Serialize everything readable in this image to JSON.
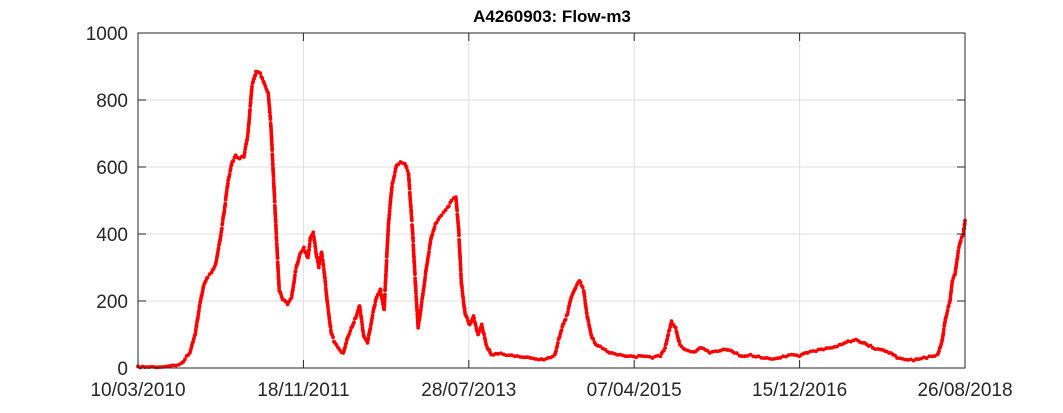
{
  "chart_data": {
    "type": "scatter",
    "title": "A4260903: Flow-m3",
    "xlabel": "",
    "ylabel": "",
    "x_ticks": [
      "10/03/2010",
      "18/11/2011",
      "28/07/2013",
      "07/04/2015",
      "15/12/2016",
      "26/08/2018"
    ],
    "xlim": [
      "2010-03-10",
      "2018-08-26"
    ],
    "y_ticks": [
      "0",
      "200",
      "400",
      "600",
      "800",
      "1000"
    ],
    "ylim": [
      0,
      1000
    ],
    "grid": true,
    "marker": "dot",
    "color": "#ff0000",
    "series": [
      {
        "name": "",
        "points": [
          [
            "2010-03-10",
            5
          ],
          [
            "2010-05-01",
            4
          ],
          [
            "2010-06-10",
            3
          ],
          [
            "2010-07-20",
            8
          ],
          [
            "2010-08-20",
            15
          ],
          [
            "2010-09-20",
            45
          ],
          [
            "2010-10-10",
            100
          ],
          [
            "2010-10-25",
            180
          ],
          [
            "2010-11-10",
            245
          ],
          [
            "2010-11-25",
            270
          ],
          [
            "2010-12-10",
            285
          ],
          [
            "2010-12-25",
            310
          ],
          [
            "2011-01-10",
            380
          ],
          [
            "2011-01-25",
            460
          ],
          [
            "2011-02-10",
            560
          ],
          [
            "2011-02-25",
            615
          ],
          [
            "2011-03-10",
            635
          ],
          [
            "2011-03-25",
            625
          ],
          [
            "2011-04-10",
            630
          ],
          [
            "2011-04-25",
            700
          ],
          [
            "2011-05-10",
            840
          ],
          [
            "2011-05-25",
            885
          ],
          [
            "2011-06-10",
            880
          ],
          [
            "2011-06-25",
            850
          ],
          [
            "2011-07-10",
            820
          ],
          [
            "2011-07-20",
            720
          ],
          [
            "2011-07-30",
            560
          ],
          [
            "2011-08-10",
            380
          ],
          [
            "2011-08-20",
            230
          ],
          [
            "2011-09-01",
            205
          ],
          [
            "2011-09-20",
            190
          ],
          [
            "2011-10-05",
            210
          ],
          [
            "2011-10-20",
            290
          ],
          [
            "2011-11-05",
            340
          ],
          [
            "2011-11-20",
            360
          ],
          [
            "2011-12-05",
            330
          ],
          [
            "2011-12-15",
            390
          ],
          [
            "2011-12-25",
            405
          ],
          [
            "2012-01-05",
            340
          ],
          [
            "2012-01-15",
            300
          ],
          [
            "2012-01-25",
            345
          ],
          [
            "2012-02-05",
            280
          ],
          [
            "2012-02-15",
            200
          ],
          [
            "2012-03-01",
            105
          ],
          [
            "2012-03-15",
            75
          ],
          [
            "2012-04-01",
            55
          ],
          [
            "2012-04-15",
            45
          ],
          [
            "2012-05-01",
            90
          ],
          [
            "2012-05-15",
            120
          ],
          [
            "2012-06-01",
            150
          ],
          [
            "2012-06-15",
            185
          ],
          [
            "2012-07-01",
            95
          ],
          [
            "2012-07-15",
            75
          ],
          [
            "2012-08-01",
            150
          ],
          [
            "2012-08-15",
            205
          ],
          [
            "2012-09-01",
            235
          ],
          [
            "2012-09-15",
            175
          ],
          [
            "2012-10-01",
            430
          ],
          [
            "2012-10-15",
            550
          ],
          [
            "2012-11-01",
            605
          ],
          [
            "2012-11-15",
            615
          ],
          [
            "2012-12-01",
            610
          ],
          [
            "2012-12-15",
            580
          ],
          [
            "2012-12-30",
            410
          ],
          [
            "2013-01-10",
            250
          ],
          [
            "2013-01-20",
            120
          ],
          [
            "2013-02-05",
            210
          ],
          [
            "2013-02-20",
            300
          ],
          [
            "2013-03-10",
            390
          ],
          [
            "2013-03-25",
            430
          ],
          [
            "2013-04-10",
            450
          ],
          [
            "2013-04-25",
            465
          ],
          [
            "2013-05-10",
            480
          ],
          [
            "2013-05-25",
            500
          ],
          [
            "2013-06-10",
            510
          ],
          [
            "2013-06-20",
            420
          ],
          [
            "2013-07-01",
            250
          ],
          [
            "2013-07-15",
            160
          ],
          [
            "2013-08-01",
            130
          ],
          [
            "2013-08-15",
            155
          ],
          [
            "2013-09-01",
            100
          ],
          [
            "2013-09-15",
            130
          ],
          [
            "2013-10-01",
            70
          ],
          [
            "2013-10-20",
            40
          ],
          [
            "2013-11-15",
            42
          ],
          [
            "2013-12-15",
            38
          ],
          [
            "2014-01-15",
            35
          ],
          [
            "2014-02-15",
            32
          ],
          [
            "2014-03-15",
            30
          ],
          [
            "2014-04-15",
            25
          ],
          [
            "2014-05-15",
            28
          ],
          [
            "2014-06-15",
            40
          ],
          [
            "2014-07-01",
            90
          ],
          [
            "2014-07-15",
            130
          ],
          [
            "2014-08-01",
            160
          ],
          [
            "2014-08-15",
            210
          ],
          [
            "2014-09-01",
            240
          ],
          [
            "2014-09-15",
            260
          ],
          [
            "2014-10-01",
            230
          ],
          [
            "2014-10-15",
            150
          ],
          [
            "2014-11-01",
            90
          ],
          [
            "2014-11-15",
            70
          ],
          [
            "2014-12-01",
            65
          ],
          [
            "2014-12-20",
            55
          ],
          [
            "2015-01-15",
            45
          ],
          [
            "2015-02-15",
            40
          ],
          [
            "2015-03-15",
            35
          ],
          [
            "2015-04-15",
            32
          ],
          [
            "2015-05-15",
            35
          ],
          [
            "2015-06-15",
            30
          ],
          [
            "2015-07-15",
            35
          ],
          [
            "2015-08-01",
            60
          ],
          [
            "2015-08-15",
            110
          ],
          [
            "2015-08-25",
            140
          ],
          [
            "2015-09-10",
            120
          ],
          [
            "2015-09-25",
            70
          ],
          [
            "2015-10-15",
            55
          ],
          [
            "2015-11-15",
            48
          ],
          [
            "2015-12-15",
            60
          ],
          [
            "2016-01-15",
            45
          ],
          [
            "2016-02-15",
            50
          ],
          [
            "2016-03-15",
            55
          ],
          [
            "2016-04-15",
            45
          ],
          [
            "2016-05-15",
            35
          ],
          [
            "2016-06-15",
            40
          ],
          [
            "2016-07-15",
            35
          ],
          [
            "2016-08-15",
            30
          ],
          [
            "2016-09-15",
            28
          ],
          [
            "2016-10-15",
            35
          ],
          [
            "2016-11-15",
            40
          ],
          [
            "2016-12-15",
            35
          ],
          [
            "2017-01-15",
            45
          ],
          [
            "2017-02-15",
            50
          ],
          [
            "2017-03-15",
            55
          ],
          [
            "2017-04-15",
            60
          ],
          [
            "2017-05-15",
            70
          ],
          [
            "2017-06-15",
            80
          ],
          [
            "2017-07-15",
            85
          ],
          [
            "2017-08-15",
            75
          ],
          [
            "2017-09-15",
            60
          ],
          [
            "2017-10-15",
            55
          ],
          [
            "2017-11-15",
            45
          ],
          [
            "2017-12-15",
            30
          ],
          [
            "2018-01-15",
            25
          ],
          [
            "2018-02-15",
            22
          ],
          [
            "2018-03-15",
            28
          ],
          [
            "2018-04-15",
            35
          ],
          [
            "2018-05-15",
            40
          ],
          [
            "2018-06-01",
            80
          ],
          [
            "2018-06-15",
            150
          ],
          [
            "2018-07-01",
            200
          ],
          [
            "2018-07-10",
            260
          ],
          [
            "2018-07-20",
            280
          ],
          [
            "2018-08-01",
            350
          ],
          [
            "2018-08-10",
            380
          ],
          [
            "2018-08-20",
            400
          ],
          [
            "2018-08-26",
            440
          ]
        ]
      }
    ]
  }
}
